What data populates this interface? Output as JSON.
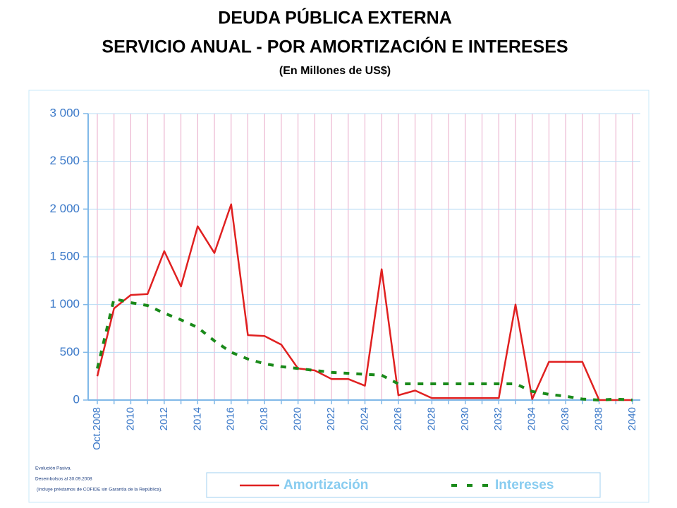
{
  "chart_data": {
    "type": "line",
    "title": "DEUDA PÚBLICA EXTERNA",
    "subtitle": "SERVICIO ANUAL - POR AMORTIZACIÓN E INTERESES",
    "units": "(En Millones de US$)",
    "categories": [
      "Oct.2008",
      null,
      "2010",
      null,
      "2012",
      null,
      "2014",
      null,
      "2016",
      null,
      "2018",
      null,
      "2020",
      null,
      "2022",
      null,
      "2024",
      null,
      "2026",
      null,
      "2028",
      null,
      "2030",
      null,
      "2032",
      null,
      "2034",
      null,
      "2036",
      null,
      "2038",
      null,
      "2040"
    ],
    "series": [
      {
        "name": "Amortización",
        "color": "#e02020",
        "dash": false,
        "values": [
          250,
          960,
          1100,
          1110,
          1560,
          1190,
          1820,
          1540,
          2050,
          680,
          670,
          580,
          330,
          310,
          220,
          220,
          150,
          1370,
          50,
          100,
          20,
          20,
          20,
          20,
          20,
          1000,
          10,
          400,
          400,
          400,
          0,
          0,
          0
        ]
      },
      {
        "name": "Intereses",
        "color": "#1a8a1a",
        "dash": true,
        "values": [
          330,
          1060,
          1020,
          990,
          910,
          840,
          760,
          620,
          500,
          430,
          380,
          350,
          330,
          310,
          290,
          280,
          270,
          260,
          170,
          170,
          170,
          170,
          170,
          170,
          170,
          170,
          90,
          60,
          40,
          10,
          0,
          10,
          0
        ]
      }
    ],
    "ylim": [
      0,
      3000
    ],
    "yticks": [
      0,
      500,
      {
        "value": 1000,
        "label": "1 000"
      },
      {
        "value": 1500,
        "label": "1 500"
      },
      {
        "value": 2000,
        "label": "2 000"
      },
      {
        "value": 2500,
        "label": "2 500"
      },
      {
        "value": 3000,
        "label": "3 000"
      }
    ],
    "grid": true,
    "legend": "bottom",
    "notes": [
      "Evolución Pasiva.",
      "Desembolsos al 30.09.2008",
      "(Incluye préstamos de COFIDE sin Garantía de la República)."
    ]
  }
}
